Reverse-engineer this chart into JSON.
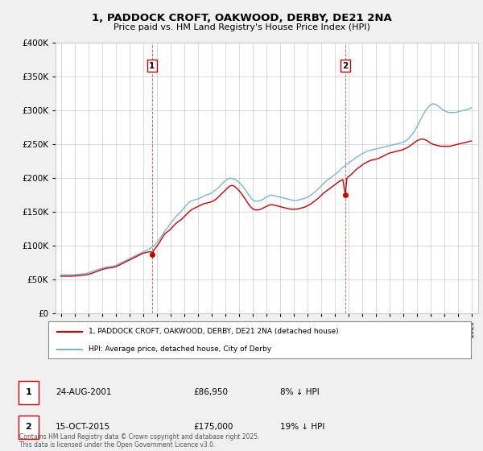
{
  "title": "1, PADDOCK CROFT, OAKWOOD, DERBY, DE21 2NA",
  "subtitle": "Price paid vs. HM Land Registry's House Price Index (HPI)",
  "legend_entry1": "1, PADDOCK CROFT, OAKWOOD, DERBY, DE21 2NA (detached house)",
  "legend_entry2": "HPI: Average price, detached house, City of Derby",
  "footnote": "Contains HM Land Registry data © Crown copyright and database right 2025.\nThis data is licensed under the Open Government Licence v3.0.",
  "table_rows": [
    {
      "label": "1",
      "date": "24-AUG-2001",
      "price": "£86,950",
      "pct": "8% ↓ HPI"
    },
    {
      "label": "2",
      "date": "15-OCT-2015",
      "price": "£175,000",
      "pct": "19% ↓ HPI"
    }
  ],
  "sale1": {
    "year": 2001.65,
    "price": 86950
  },
  "sale2": {
    "year": 2015.79,
    "price": 175000
  },
  "property_color": "#cc0000",
  "hpi_color": "#7cb4d8",
  "background_color": "#f0f0f0",
  "plot_bg_color": "#ffffff",
  "ylim": [
    0,
    400000
  ],
  "xlim": [
    1994.6,
    2025.5
  ],
  "yticks": [
    0,
    50000,
    100000,
    150000,
    200000,
    250000,
    300000,
    350000,
    400000
  ],
  "xticks": [
    1995,
    1996,
    1997,
    1998,
    1999,
    2000,
    2001,
    2002,
    2003,
    2004,
    2005,
    2006,
    2007,
    2008,
    2009,
    2010,
    2011,
    2012,
    2013,
    2014,
    2015,
    2016,
    2017,
    2018,
    2019,
    2020,
    2021,
    2022,
    2023,
    2024,
    2025
  ],
  "hpi_data": [
    [
      1995.0,
      57000
    ],
    [
      1995.1,
      57100
    ],
    [
      1995.2,
      57200
    ],
    [
      1995.3,
      57100
    ],
    [
      1995.4,
      57000
    ],
    [
      1995.5,
      57200
    ],
    [
      1995.6,
      57100
    ],
    [
      1995.7,
      57300
    ],
    [
      1995.8,
      57200
    ],
    [
      1995.9,
      57400
    ],
    [
      1996.0,
      57500
    ],
    [
      1996.2,
      57800
    ],
    [
      1996.4,
      58200
    ],
    [
      1996.6,
      58500
    ],
    [
      1996.8,
      59000
    ],
    [
      1997.0,
      60000
    ],
    [
      1997.2,
      61500
    ],
    [
      1997.4,
      63000
    ],
    [
      1997.6,
      64500
    ],
    [
      1997.8,
      65500
    ],
    [
      1998.0,
      67000
    ],
    [
      1998.2,
      68000
    ],
    [
      1998.4,
      69000
    ],
    [
      1998.6,
      69500
    ],
    [
      1998.8,
      70000
    ],
    [
      1999.0,
      71000
    ],
    [
      1999.2,
      73000
    ],
    [
      1999.4,
      75000
    ],
    [
      1999.6,
      77000
    ],
    [
      1999.8,
      79000
    ],
    [
      2000.0,
      81000
    ],
    [
      2000.2,
      83000
    ],
    [
      2000.4,
      85000
    ],
    [
      2000.6,
      87000
    ],
    [
      2000.8,
      89000
    ],
    [
      2001.0,
      91000
    ],
    [
      2001.2,
      93000
    ],
    [
      2001.4,
      95000
    ],
    [
      2001.6,
      97000
    ],
    [
      2001.8,
      100000
    ],
    [
      2002.0,
      105000
    ],
    [
      2002.2,
      110000
    ],
    [
      2002.4,
      116000
    ],
    [
      2002.6,
      122000
    ],
    [
      2002.8,
      127000
    ],
    [
      2003.0,
      133000
    ],
    [
      2003.2,
      138000
    ],
    [
      2003.4,
      143000
    ],
    [
      2003.6,
      147000
    ],
    [
      2003.8,
      151000
    ],
    [
      2004.0,
      156000
    ],
    [
      2004.2,
      161000
    ],
    [
      2004.4,
      165000
    ],
    [
      2004.6,
      167000
    ],
    [
      2004.8,
      168000
    ],
    [
      2005.0,
      169000
    ],
    [
      2005.2,
      171000
    ],
    [
      2005.4,
      173000
    ],
    [
      2005.6,
      175000
    ],
    [
      2005.8,
      176000
    ],
    [
      2006.0,
      178000
    ],
    [
      2006.2,
      181000
    ],
    [
      2006.4,
      184000
    ],
    [
      2006.6,
      188000
    ],
    [
      2006.8,
      192000
    ],
    [
      2007.0,
      196000
    ],
    [
      2007.2,
      199000
    ],
    [
      2007.4,
      200000
    ],
    [
      2007.6,
      199000
    ],
    [
      2007.8,
      197000
    ],
    [
      2008.0,
      194000
    ],
    [
      2008.2,
      190000
    ],
    [
      2008.4,
      185000
    ],
    [
      2008.6,
      179000
    ],
    [
      2008.8,
      173000
    ],
    [
      2009.0,
      168000
    ],
    [
      2009.2,
      166000
    ],
    [
      2009.4,
      166000
    ],
    [
      2009.6,
      167000
    ],
    [
      2009.8,
      169000
    ],
    [
      2010.0,
      172000
    ],
    [
      2010.2,
      174000
    ],
    [
      2010.4,
      175000
    ],
    [
      2010.6,
      174000
    ],
    [
      2010.8,
      173000
    ],
    [
      2011.0,
      172000
    ],
    [
      2011.2,
      171000
    ],
    [
      2011.4,
      170000
    ],
    [
      2011.6,
      169000
    ],
    [
      2011.8,
      168000
    ],
    [
      2012.0,
      167000
    ],
    [
      2012.2,
      167000
    ],
    [
      2012.4,
      168000
    ],
    [
      2012.6,
      169000
    ],
    [
      2012.8,
      170000
    ],
    [
      2013.0,
      172000
    ],
    [
      2013.2,
      174000
    ],
    [
      2013.4,
      177000
    ],
    [
      2013.6,
      180000
    ],
    [
      2013.8,
      184000
    ],
    [
      2014.0,
      188000
    ],
    [
      2014.2,
      192000
    ],
    [
      2014.4,
      196000
    ],
    [
      2014.6,
      199000
    ],
    [
      2014.8,
      202000
    ],
    [
      2015.0,
      205000
    ],
    [
      2015.2,
      208000
    ],
    [
      2015.4,
      212000
    ],
    [
      2015.6,
      216000
    ],
    [
      2015.8,
      219000
    ],
    [
      2016.0,
      222000
    ],
    [
      2016.2,
      225000
    ],
    [
      2016.4,
      228000
    ],
    [
      2016.6,
      231000
    ],
    [
      2016.8,
      233000
    ],
    [
      2017.0,
      236000
    ],
    [
      2017.2,
      238000
    ],
    [
      2017.4,
      240000
    ],
    [
      2017.6,
      241000
    ],
    [
      2017.8,
      242000
    ],
    [
      2018.0,
      243000
    ],
    [
      2018.2,
      244000
    ],
    [
      2018.4,
      245000
    ],
    [
      2018.6,
      246000
    ],
    [
      2018.8,
      247000
    ],
    [
      2019.0,
      248000
    ],
    [
      2019.2,
      249000
    ],
    [
      2019.4,
      250000
    ],
    [
      2019.6,
      251000
    ],
    [
      2019.8,
      252000
    ],
    [
      2020.0,
      253000
    ],
    [
      2020.2,
      255000
    ],
    [
      2020.4,
      258000
    ],
    [
      2020.6,
      263000
    ],
    [
      2020.8,
      268000
    ],
    [
      2021.0,
      275000
    ],
    [
      2021.2,
      283000
    ],
    [
      2021.4,
      291000
    ],
    [
      2021.6,
      298000
    ],
    [
      2021.8,
      304000
    ],
    [
      2022.0,
      308000
    ],
    [
      2022.2,
      310000
    ],
    [
      2022.4,
      309000
    ],
    [
      2022.6,
      306000
    ],
    [
      2022.8,
      303000
    ],
    [
      2023.0,
      300000
    ],
    [
      2023.2,
      298000
    ],
    [
      2023.4,
      297000
    ],
    [
      2023.6,
      297000
    ],
    [
      2023.8,
      297000
    ],
    [
      2024.0,
      298000
    ],
    [
      2024.2,
      299000
    ],
    [
      2024.4,
      300000
    ],
    [
      2024.6,
      301000
    ],
    [
      2024.8,
      302000
    ],
    [
      2025.0,
      304000
    ]
  ],
  "property_data": [
    [
      1995.0,
      55000
    ],
    [
      1995.1,
      55100
    ],
    [
      1995.2,
      55050
    ],
    [
      1995.3,
      55100
    ],
    [
      1995.4,
      55000
    ],
    [
      1995.5,
      55100
    ],
    [
      1995.6,
      55050
    ],
    [
      1995.7,
      55200
    ],
    [
      1995.8,
      55100
    ],
    [
      1995.9,
      55200
    ],
    [
      1996.0,
      55500
    ],
    [
      1996.2,
      55800
    ],
    [
      1996.4,
      56200
    ],
    [
      1996.6,
      56600
    ],
    [
      1996.8,
      57000
    ],
    [
      1997.0,
      57800
    ],
    [
      1997.2,
      59000
    ],
    [
      1997.4,
      60500
    ],
    [
      1997.6,
      62000
    ],
    [
      1997.8,
      63500
    ],
    [
      1998.0,
      65000
    ],
    [
      1998.2,
      66000
    ],
    [
      1998.4,
      67000
    ],
    [
      1998.6,
      67500
    ],
    [
      1998.8,
      68000
    ],
    [
      1999.0,
      69000
    ],
    [
      1999.2,
      71000
    ],
    [
      1999.4,
      73000
    ],
    [
      1999.6,
      75000
    ],
    [
      1999.8,
      77000
    ],
    [
      2000.0,
      79000
    ],
    [
      2000.2,
      81000
    ],
    [
      2000.4,
      83000
    ],
    [
      2000.6,
      85000
    ],
    [
      2000.8,
      87000
    ],
    [
      2001.0,
      89000
    ],
    [
      2001.2,
      90000
    ],
    [
      2001.4,
      91000
    ],
    [
      2001.6,
      91500
    ],
    [
      2001.65,
      86950
    ],
    [
      2001.8,
      94000
    ],
    [
      2002.0,
      99000
    ],
    [
      2002.2,
      105000
    ],
    [
      2002.4,
      112000
    ],
    [
      2002.6,
      118000
    ],
    [
      2003.0,
      124000
    ],
    [
      2003.2,
      129000
    ],
    [
      2003.4,
      133000
    ],
    [
      2003.6,
      136000
    ],
    [
      2003.8,
      139000
    ],
    [
      2004.0,
      143000
    ],
    [
      2004.2,
      147000
    ],
    [
      2004.4,
      151000
    ],
    [
      2004.6,
      154000
    ],
    [
      2004.8,
      156000
    ],
    [
      2005.0,
      158000
    ],
    [
      2005.2,
      160000
    ],
    [
      2005.4,
      162000
    ],
    [
      2005.6,
      163000
    ],
    [
      2005.8,
      164000
    ],
    [
      2006.0,
      165000
    ],
    [
      2006.2,
      167000
    ],
    [
      2006.4,
      170000
    ],
    [
      2006.6,
      174000
    ],
    [
      2006.8,
      178000
    ],
    [
      2007.0,
      182000
    ],
    [
      2007.2,
      186000
    ],
    [
      2007.4,
      189000
    ],
    [
      2007.6,
      189000
    ],
    [
      2007.8,
      186000
    ],
    [
      2008.0,
      182000
    ],
    [
      2008.2,
      177000
    ],
    [
      2008.4,
      171000
    ],
    [
      2008.6,
      165000
    ],
    [
      2008.8,
      159000
    ],
    [
      2009.0,
      155000
    ],
    [
      2009.2,
      153000
    ],
    [
      2009.4,
      153000
    ],
    [
      2009.6,
      154000
    ],
    [
      2009.8,
      156000
    ],
    [
      2010.0,
      158000
    ],
    [
      2010.2,
      160000
    ],
    [
      2010.4,
      161000
    ],
    [
      2010.6,
      160000
    ],
    [
      2010.8,
      159000
    ],
    [
      2011.0,
      158000
    ],
    [
      2011.2,
      157000
    ],
    [
      2011.4,
      156000
    ],
    [
      2011.6,
      155000
    ],
    [
      2011.8,
      154000
    ],
    [
      2012.0,
      154000
    ],
    [
      2012.2,
      154000
    ],
    [
      2012.4,
      155000
    ],
    [
      2012.6,
      156000
    ],
    [
      2012.8,
      157000
    ],
    [
      2013.0,
      159000
    ],
    [
      2013.2,
      161000
    ],
    [
      2013.4,
      164000
    ],
    [
      2013.6,
      167000
    ],
    [
      2013.8,
      170000
    ],
    [
      2014.0,
      174000
    ],
    [
      2014.2,
      178000
    ],
    [
      2014.4,
      181000
    ],
    [
      2014.6,
      184000
    ],
    [
      2014.8,
      187000
    ],
    [
      2015.0,
      190000
    ],
    [
      2015.2,
      193000
    ],
    [
      2015.4,
      196000
    ],
    [
      2015.6,
      198000
    ],
    [
      2015.79,
      175000
    ],
    [
      2015.9,
      200000
    ],
    [
      2016.0,
      202000
    ],
    [
      2016.2,
      205000
    ],
    [
      2016.4,
      209000
    ],
    [
      2016.6,
      213000
    ],
    [
      2016.8,
      216000
    ],
    [
      2017.0,
      219000
    ],
    [
      2017.2,
      222000
    ],
    [
      2017.4,
      224000
    ],
    [
      2017.6,
      226000
    ],
    [
      2017.8,
      227000
    ],
    [
      2018.0,
      228000
    ],
    [
      2018.2,
      229000
    ],
    [
      2018.4,
      231000
    ],
    [
      2018.6,
      233000
    ],
    [
      2018.8,
      235000
    ],
    [
      2019.0,
      237000
    ],
    [
      2019.2,
      238000
    ],
    [
      2019.4,
      239000
    ],
    [
      2019.6,
      240000
    ],
    [
      2019.8,
      241000
    ],
    [
      2020.0,
      242000
    ],
    [
      2020.2,
      244000
    ],
    [
      2020.4,
      246000
    ],
    [
      2020.6,
      249000
    ],
    [
      2020.8,
      252000
    ],
    [
      2021.0,
      255000
    ],
    [
      2021.2,
      257000
    ],
    [
      2021.4,
      258000
    ],
    [
      2021.6,
      257000
    ],
    [
      2021.8,
      255000
    ],
    [
      2022.0,
      252000
    ],
    [
      2022.2,
      250000
    ],
    [
      2022.4,
      249000
    ],
    [
      2022.6,
      248000
    ],
    [
      2022.8,
      247000
    ],
    [
      2023.0,
      247000
    ],
    [
      2023.2,
      247000
    ],
    [
      2023.4,
      247000
    ],
    [
      2023.6,
      248000
    ],
    [
      2023.8,
      249000
    ],
    [
      2024.0,
      250000
    ],
    [
      2024.2,
      251000
    ],
    [
      2024.4,
      252000
    ],
    [
      2024.6,
      253000
    ],
    [
      2024.8,
      254000
    ],
    [
      2025.0,
      255000
    ]
  ]
}
